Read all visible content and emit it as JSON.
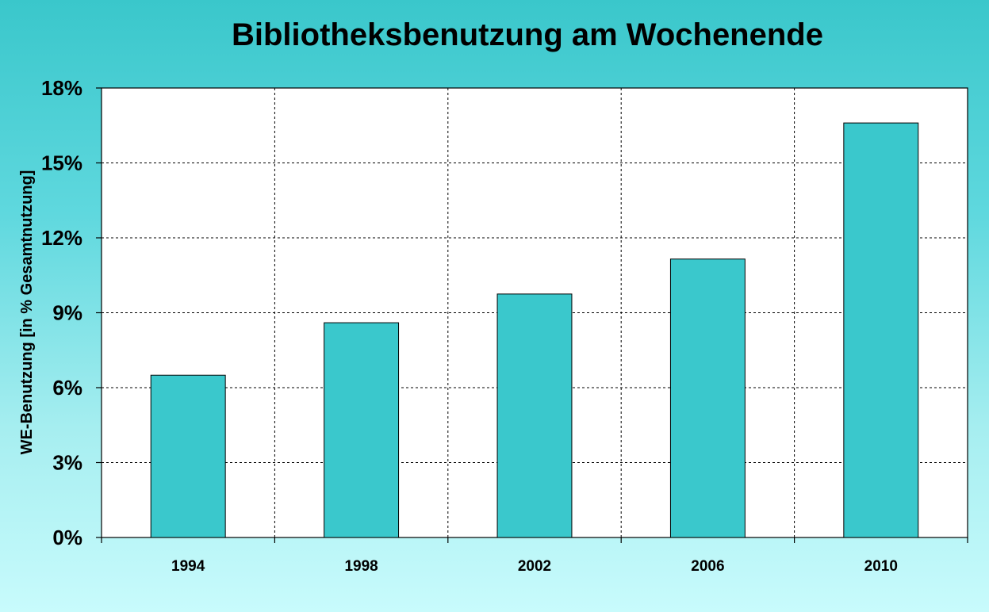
{
  "chart_data": {
    "type": "bar",
    "title": "Bibliotheksbenutzung am Wochenende",
    "xlabel": "",
    "ylabel": "WE-Benutzung [in % Gesamtnutzung]",
    "categories": [
      "1994",
      "1998",
      "2002",
      "2006",
      "2010"
    ],
    "values": [
      6.5,
      8.6,
      9.75,
      11.15,
      16.6
    ],
    "ylim": [
      0,
      18
    ],
    "yticks": [
      0,
      3,
      6,
      9,
      12,
      15,
      18
    ],
    "ytick_labels": [
      "0%",
      "3%",
      "6%",
      "9%",
      "12%",
      "15%",
      "18%"
    ],
    "grid": "dashed",
    "legend": "none",
    "bar_color": "#3ac8cc",
    "plot_background": "#ffffff"
  }
}
